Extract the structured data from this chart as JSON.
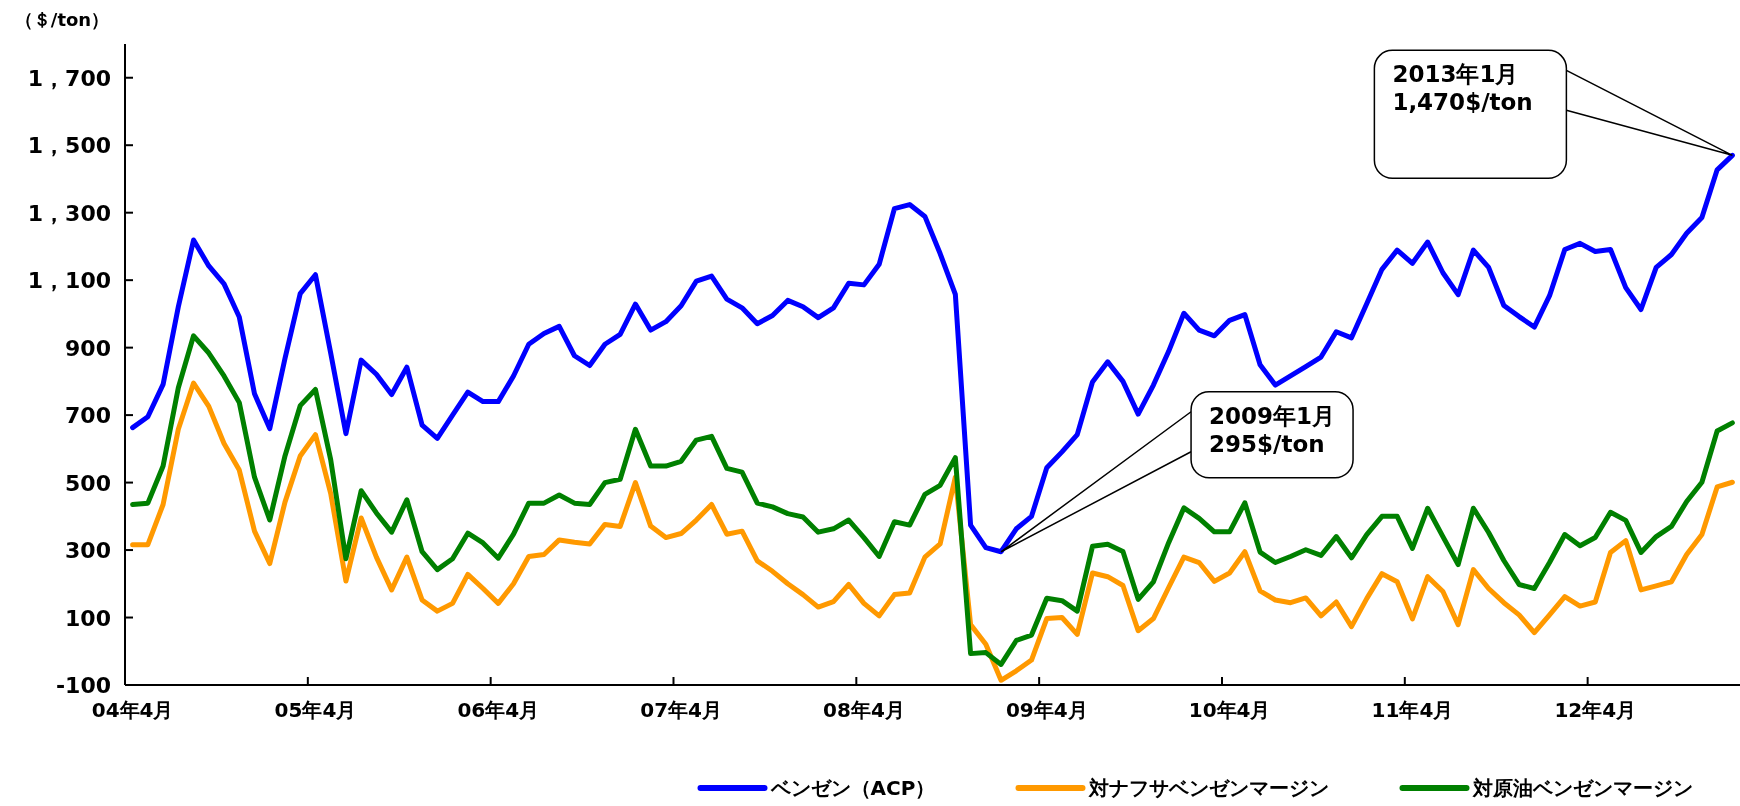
{
  "chart_data": {
    "type": "line",
    "ylabel": "（＄/ton）",
    "categories": [
      "04年4月",
      null,
      null,
      null,
      null,
      null,
      null,
      null,
      null,
      null,
      null,
      null,
      "05年4月",
      null,
      null,
      null,
      null,
      null,
      null,
      null,
      null,
      null,
      null,
      null,
      "06年4月",
      null,
      null,
      null,
      null,
      null,
      null,
      null,
      null,
      null,
      null,
      null,
      "07年4月",
      null,
      null,
      null,
      null,
      null,
      null,
      null,
      null,
      null,
      null,
      null,
      "08年4月",
      null,
      null,
      null,
      null,
      null,
      null,
      null,
      null,
      null,
      null,
      null,
      "09年4月",
      null,
      null,
      null,
      null,
      null,
      null,
      null,
      null,
      null,
      null,
      null,
      "10年4月",
      null,
      null,
      null,
      null,
      null,
      null,
      null,
      null,
      null,
      null,
      null,
      "11年4月",
      null,
      null,
      null,
      null,
      null,
      null,
      null,
      null,
      null,
      null,
      null,
      "12年4月",
      null,
      null,
      null,
      null,
      null,
      null,
      null,
      null,
      null
    ],
    "ylim": [
      -100,
      1800
    ],
    "yticks": [
      -100,
      100,
      300,
      500,
      700,
      900,
      {
        "value": 1100,
        "label": "1，100"
      },
      {
        "value": 1300,
        "label": "1，300"
      },
      {
        "value": 1500,
        "label": "1，500"
      },
      {
        "value": 1700,
        "label": "1，700"
      }
    ],
    "grid": false,
    "legend": "bottom",
    "marker": "none",
    "line_style": "solid",
    "series": [
      {
        "name": "ベンゼン（ACP）",
        "color": "#0000ff",
        "values": [
          663,
          695,
          791,
          1021,
          1219,
          1142,
          1089,
          991,
          763,
          660,
          868,
          1060,
          1116,
          884,
          645,
          863,
          821,
          761,
          842,
          670,
          631,
          700,
          768,
          740,
          740,
          816,
          910,
          942,
          963,
          876,
          847,
          910,
          939,
          1029,
          952,
          977,
          1024,
          1097,
          1112,
          1044,
          1018,
          971,
          995,
          1040,
          1021,
          989,
          1018,
          1091,
          1086,
          1147,
          1312,
          1324,
          1289,
          1179,
          1058,
          374,
          307,
          295,
          363,
          400,
          544,
          591,
          642,
          798,
          858,
          800,
          703,
          789,
          889,
          1002,
          952,
          935,
          981,
          998,
          849,
          789,
          816,
          844,
          872,
          947,
          929,
          1030,
          1132,
          1189,
          1150,
          1213,
          1122,
          1057,
          1189,
          1138,
          1025,
          992,
          961,
          1054,
          1191,
          1209,
          1185,
          1191,
          1078,
          1013,
          1138,
          1176,
          1239,
          1286,
          1427,
          1470
        ]
      },
      {
        "name": "対ナフサベンゼンマージン",
        "color": "#ff9900",
        "values": [
          316,
          316,
          435,
          658,
          795,
          726,
          616,
          537,
          356,
          260,
          442,
          579,
          642,
          468,
          208,
          395,
          279,
          182,
          279,
          152,
          119,
          142,
          228,
          186,
          142,
          200,
          281,
          287,
          330,
          323,
          318,
          376,
          370,
          500,
          371,
          337,
          349,
          389,
          435,
          347,
          356,
          268,
          237,
          200,
          168,
          131,
          147,
          198,
          142,
          105,
          168,
          173,
          279,
          318,
          516,
          79,
          21,
          -86,
          -58,
          -26,
          97,
          100,
          50,
          232,
          221,
          195,
          61,
          97,
          189,
          279,
          263,
          207,
          232,
          295,
          179,
          152,
          144,
          158,
          105,
          146,
          73,
          156,
          230,
          206,
          96,
          221,
          177,
          79,
          242,
          186,
          144,
          108,
          55,
          108,
          162,
          134,
          146,
          293,
          328,
          182,
          194,
          206,
          287,
          346,
          487,
          501
        ]
      },
      {
        "name": "対原油ベンゼンマージン",
        "color": "#008000",
        "values": [
          435,
          439,
          549,
          781,
          935,
          884,
          816,
          737,
          516,
          389,
          579,
          728,
          776,
          568,
          274,
          476,
          410,
          353,
          449,
          295,
          242,
          274,
          350,
          321,
          276,
          347,
          439,
          439,
          463,
          439,
          435,
          500,
          510,
          658,
          549,
          549,
          563,
          626,
          637,
          542,
          531,
          439,
          428,
          408,
          398,
          353,
          363,
          389,
          337,
          281,
          384,
          374,
          465,
          492,
          574,
          -7,
          -4,
          -39,
          32,
          48,
          157,
          150,
          119,
          311,
          317,
          296,
          154,
          206,
          322,
          425,
          394,
          354,
          354,
          440,
          294,
          263,
          281,
          301,
          284,
          340,
          277,
          346,
          400,
          400,
          305,
          424,
          340,
          257,
          424,
          352,
          269,
          198,
          186,
          263,
          346,
          313,
          337,
          412,
          388,
          293,
          340,
          370,
          444,
          501,
          653,
          677
        ]
      }
    ],
    "annotations": [
      "2009年1月\n295$/ton",
      "2013年1月\n1,470$/ton"
    ]
  }
}
